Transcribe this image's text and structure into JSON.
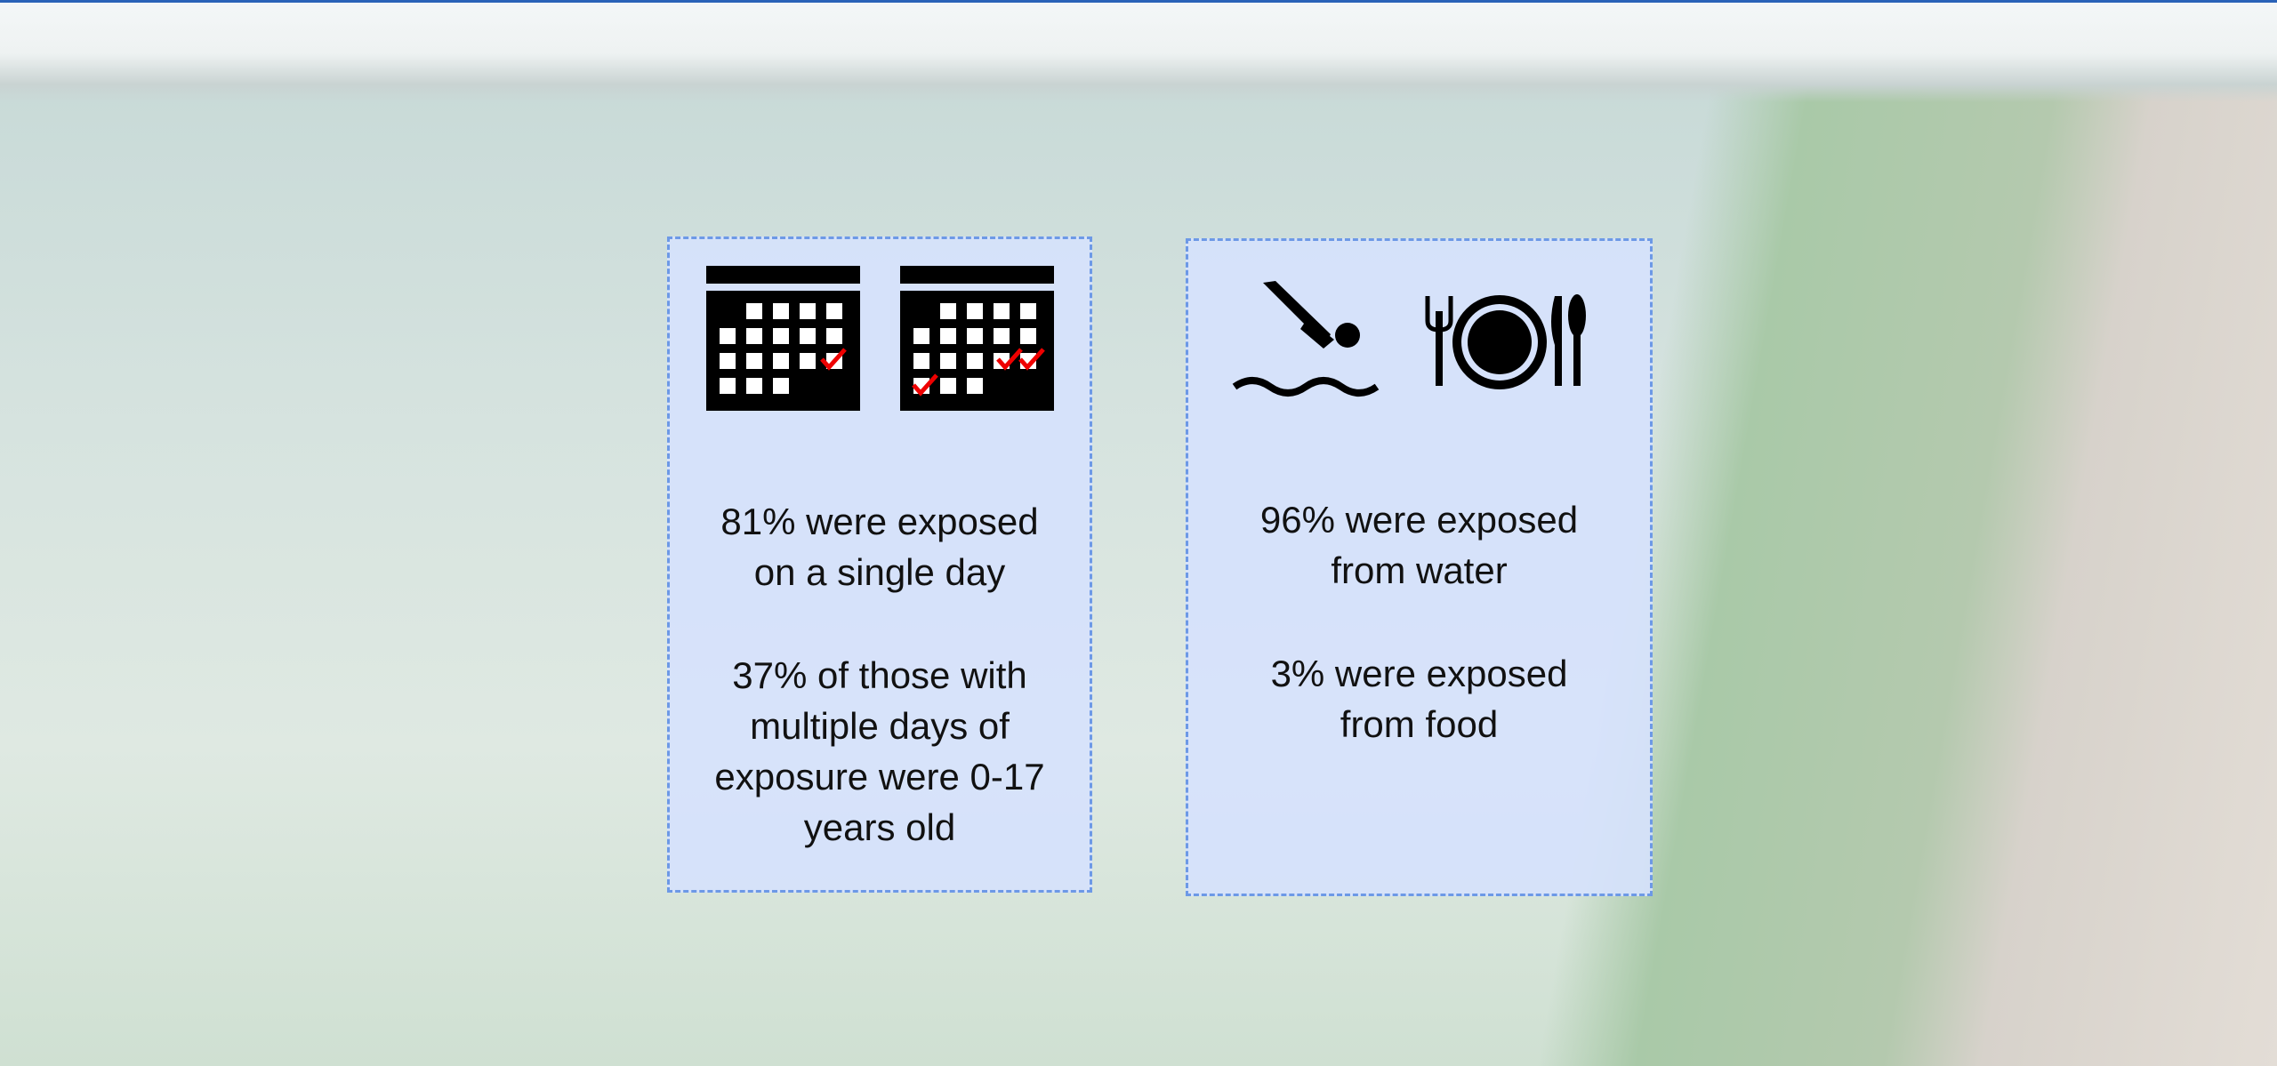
{
  "panels": [
    {
      "stats": [
        {
          "lines": [
            "81% were exposed",
            "on a single day"
          ]
        },
        {
          "lines": [
            "37% of those with",
            "multiple days of",
            "exposure were 0-17",
            "years old"
          ]
        }
      ]
    },
    {
      "stats": [
        {
          "lines": [
            "96% were exposed",
            "from water"
          ]
        },
        {
          "lines": [
            "3% were exposed",
            "from food"
          ]
        }
      ]
    }
  ]
}
